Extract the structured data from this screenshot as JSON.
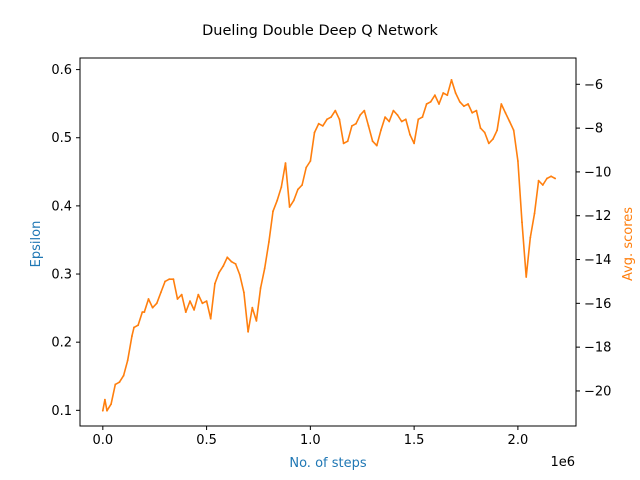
{
  "chart_data": {
    "type": "line",
    "title": "Dueling Double Deep Q Network",
    "xlabel": "No. of steps",
    "ylabel_left": "Epsilon",
    "ylabel_right": "Avg. scores",
    "x_offset_label": "1e6",
    "xlim": [
      -0.11,
      2.28
    ],
    "ylim_left": [
      0.077,
      0.617
    ],
    "ylim_right": [
      -21.6,
      -4.8
    ],
    "x_ticks": [
      0.0,
      0.5,
      1.0,
      1.5,
      2.0
    ],
    "x_tick_labels": [
      "0.0",
      "0.5",
      "1.0",
      "1.5",
      "2.0"
    ],
    "y_left_ticks": [
      0.1,
      0.2,
      0.3,
      0.4,
      0.5,
      0.6
    ],
    "y_left_tick_labels": [
      "0.1",
      "0.2",
      "0.3",
      "0.4",
      "0.5",
      "0.6"
    ],
    "y_right_ticks": [
      -20,
      -18,
      -16,
      -14,
      -12,
      -10,
      -8,
      -6
    ],
    "y_right_tick_labels": [
      "−20",
      "−18",
      "−16",
      "−14",
      "−12",
      "−10",
      "−8",
      "−6"
    ],
    "grid": false,
    "colors": {
      "left_axis_label": "#1f77b4",
      "right_axis_label": "#ff7f0e",
      "series": "#ff7f0e"
    },
    "series": [
      {
        "axis": "right",
        "x": [
          0.0,
          0.01,
          0.02,
          0.04,
          0.06,
          0.08,
          0.1,
          0.12,
          0.14,
          0.15,
          0.17,
          0.19,
          0.2,
          0.22,
          0.24,
          0.26,
          0.28,
          0.3,
          0.32,
          0.34,
          0.36,
          0.38,
          0.4,
          0.42,
          0.44,
          0.46,
          0.48,
          0.5,
          0.52,
          0.54,
          0.56,
          0.58,
          0.6,
          0.62,
          0.64,
          0.66,
          0.68,
          0.7,
          0.72,
          0.74,
          0.76,
          0.78,
          0.8,
          0.82,
          0.84,
          0.86,
          0.88,
          0.9,
          0.92,
          0.94,
          0.96,
          0.98,
          1.0,
          1.02,
          1.04,
          1.06,
          1.08,
          1.1,
          1.12,
          1.14,
          1.16,
          1.18,
          1.2,
          1.22,
          1.24,
          1.26,
          1.28,
          1.3,
          1.32,
          1.34,
          1.36,
          1.38,
          1.4,
          1.42,
          1.44,
          1.46,
          1.48,
          1.5,
          1.52,
          1.54,
          1.56,
          1.58,
          1.6,
          1.62,
          1.64,
          1.66,
          1.68,
          1.7,
          1.72,
          1.74,
          1.76,
          1.78,
          1.8,
          1.82,
          1.84,
          1.86,
          1.88,
          1.9,
          1.92,
          1.94,
          1.96,
          1.98,
          2.0,
          2.02,
          2.04,
          2.06,
          2.08,
          2.1,
          2.12,
          2.14,
          2.16,
          2.18
        ],
        "y": [
          -20.9,
          -20.4,
          -20.9,
          -20.6,
          -19.7,
          -19.6,
          -19.3,
          -18.6,
          -17.5,
          -17.1,
          -17.0,
          -16.4,
          -16.4,
          -15.8,
          -16.2,
          -16.0,
          -15.5,
          -15.0,
          -14.9,
          -14.9,
          -15.8,
          -15.6,
          -16.4,
          -15.9,
          -16.3,
          -15.6,
          -16.0,
          -15.9,
          -16.7,
          -15.1,
          -14.6,
          -14.3,
          -13.9,
          -14.1,
          -14.2,
          -14.7,
          -15.5,
          -17.3,
          -16.2,
          -16.8,
          -15.3,
          -14.4,
          -13.2,
          -11.8,
          -11.3,
          -10.7,
          -9.6,
          -11.6,
          -11.3,
          -10.8,
          -10.6,
          -9.8,
          -9.5,
          -8.2,
          -7.8,
          -7.9,
          -7.6,
          -7.5,
          -7.2,
          -7.6,
          -8.7,
          -8.6,
          -7.9,
          -7.8,
          -7.4,
          -7.2,
          -7.9,
          -8.6,
          -8.8,
          -8.1,
          -7.5,
          -7.7,
          -7.2,
          -7.4,
          -7.7,
          -7.6,
          -8.3,
          -8.7,
          -7.6,
          -7.5,
          -6.9,
          -6.8,
          -6.5,
          -6.9,
          -6.4,
          -6.5,
          -5.8,
          -6.4,
          -6.8,
          -7.0,
          -6.9,
          -7.3,
          -7.2,
          -8.0,
          -8.2,
          -8.7,
          -8.5,
          -8.1,
          -6.9,
          -7.3,
          -7.7,
          -8.1,
          -9.5,
          -12.3,
          -14.8,
          -13.0,
          -11.9,
          -10.4,
          -10.6,
          -10.3,
          -10.2,
          -10.3
        ]
      }
    ]
  }
}
